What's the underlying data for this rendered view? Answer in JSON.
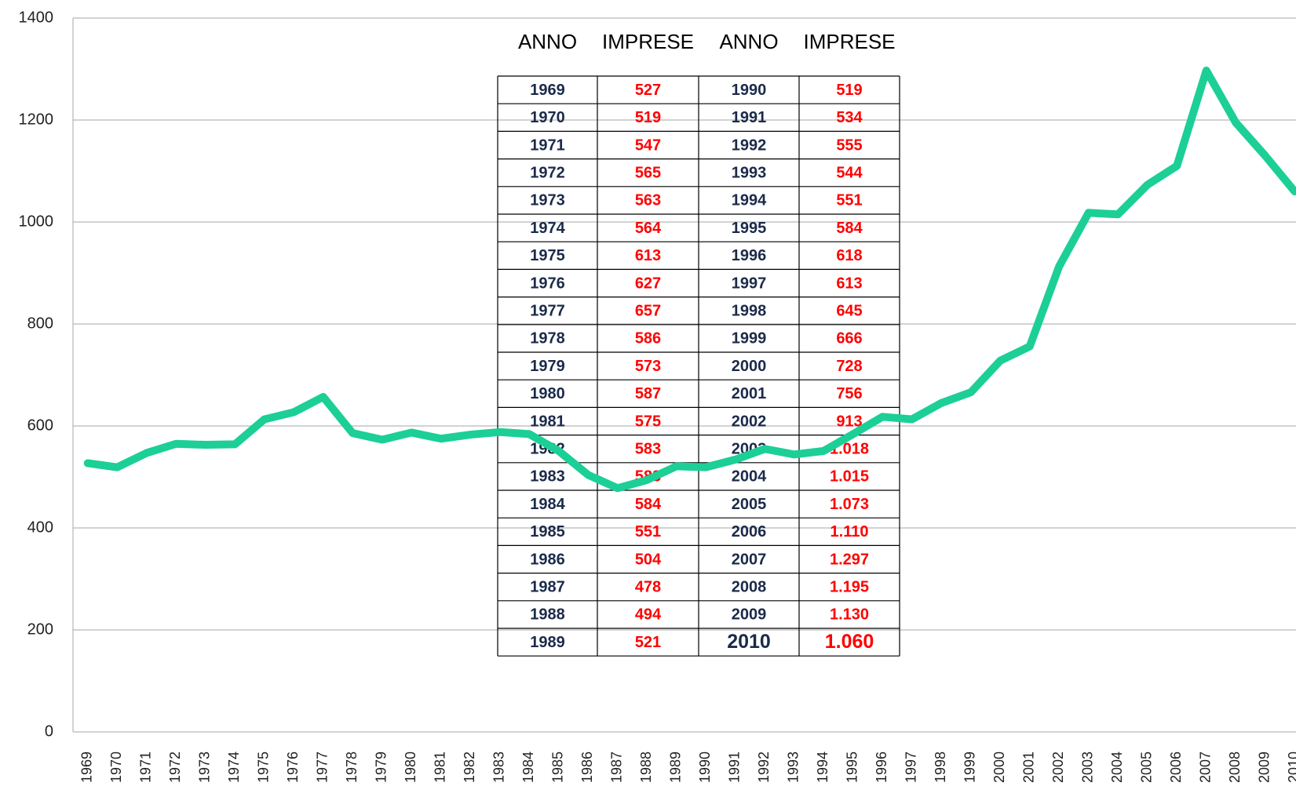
{
  "chart_data": {
    "type": "line",
    "categories": [
      "1969",
      "1970",
      "1971",
      "1972",
      "1973",
      "1974",
      "1975",
      "1976",
      "1977",
      "1978",
      "1979",
      "1980",
      "1981",
      "1982",
      "1983",
      "1984",
      "1985",
      "1986",
      "1987",
      "1988",
      "1989",
      "1990",
      "1991",
      "1992",
      "1993",
      "1994",
      "1995",
      "1996",
      "1997",
      "1998",
      "1999",
      "2000",
      "2001",
      "2002",
      "2003",
      "2004",
      "2005",
      "2006",
      "2007",
      "2008",
      "2009",
      "2010"
    ],
    "series": [
      {
        "color": "#1ccf96",
        "values": [
          527,
          519,
          547,
          565,
          563,
          564,
          613,
          627,
          657,
          586,
          573,
          587,
          575,
          583,
          588,
          584,
          551,
          504,
          478,
          494,
          521,
          519,
          534,
          555,
          544,
          551,
          584,
          618,
          613,
          645,
          666,
          728,
          756,
          913,
          1018,
          1015,
          1073,
          1110,
          1297,
          1195,
          1130,
          1060
        ]
      }
    ],
    "ylim": [
      0,
      1400
    ],
    "yticks": [
      0,
      200,
      400,
      600,
      800,
      1000,
      1200,
      1400
    ],
    "grid": true
  },
  "table": {
    "header": [
      "ANNO",
      "IMPRESE",
      "ANNO",
      "IMPRESE"
    ],
    "rows": [
      [
        "1969",
        "527",
        "1990",
        "519"
      ],
      [
        "1970",
        "519",
        "1991",
        "534"
      ],
      [
        "1971",
        "547",
        "1992",
        "555"
      ],
      [
        "1972",
        "565",
        "1993",
        "544"
      ],
      [
        "1973",
        "563",
        "1994",
        "551"
      ],
      [
        "1974",
        "564",
        "1995",
        "584"
      ],
      [
        "1975",
        "613",
        "1996",
        "618"
      ],
      [
        "1976",
        "627",
        "1997",
        "613"
      ],
      [
        "1977",
        "657",
        "1998",
        "645"
      ],
      [
        "1978",
        "586",
        "1999",
        "666"
      ],
      [
        "1979",
        "573",
        "2000",
        "728"
      ],
      [
        "1980",
        "587",
        "2001",
        "756"
      ],
      [
        "1981",
        "575",
        "2002",
        "913"
      ],
      [
        "1982",
        "583",
        "2003",
        "1.018"
      ],
      [
        "1983",
        "588",
        "2004",
        "1.015"
      ],
      [
        "1984",
        "584",
        "2005",
        "1.073"
      ],
      [
        "1985",
        "551",
        "2006",
        "1.110"
      ],
      [
        "1986",
        "504",
        "2007",
        "1.297"
      ],
      [
        "1987",
        "478",
        "2008",
        "1.195"
      ],
      [
        "1988",
        "494",
        "2009",
        "1.130"
      ],
      [
        "1989",
        "521",
        "2010",
        "1.060"
      ]
    ]
  }
}
